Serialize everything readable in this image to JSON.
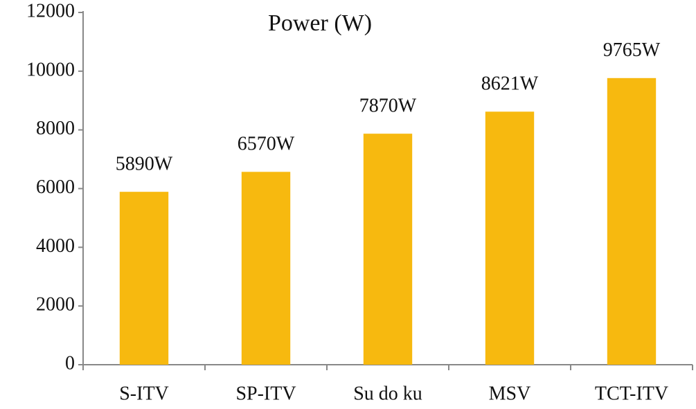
{
  "chart_data": {
    "type": "bar",
    "title": "Power (W)",
    "categories": [
      "S-ITV",
      "SP-ITV",
      "Su do ku",
      "MSV",
      "TCT-ITV"
    ],
    "values": [
      5890,
      6570,
      7870,
      8621,
      9765
    ],
    "value_labels": [
      "5890W",
      "6570W",
      "7870W",
      "8621W",
      "9765W"
    ],
    "color": "#f7b90f",
    "ylim": [
      0,
      12000
    ],
    "yticks": [
      0,
      2000,
      4000,
      6000,
      8000,
      10000,
      12000
    ],
    "grid": false
  }
}
